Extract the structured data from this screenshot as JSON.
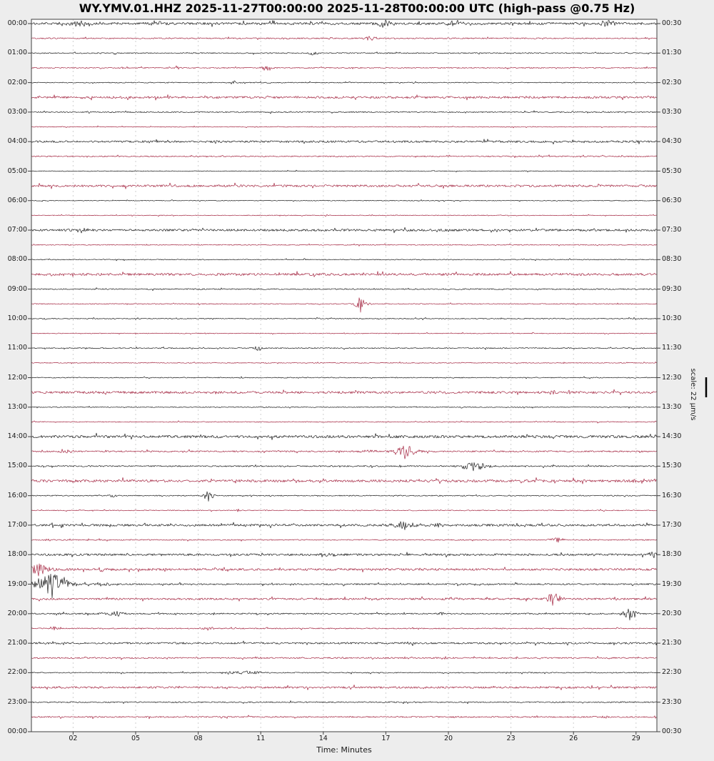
{
  "figure": {
    "title": "WY.YMV.01.HHZ 2025-11-27T00:00:00 2025-11-28T00:00:00 UTC (high-pass @0.75 Hz)",
    "xlabel": "Time: Minutes",
    "scale_label": "scale: 22 μm/s",
    "bg_color": "#ededed",
    "plot_bg": "#ffffff",
    "grid_color": "#cfcfcf",
    "frame_color": "#404040",
    "trace_color_even": "#1f1f1f",
    "trace_color_odd": "#a52843"
  },
  "axes": {
    "xlabel": "Time: Minutes",
    "x_ticks": [
      "02",
      "05",
      "08",
      "11",
      "14",
      "17",
      "20",
      "23",
      "26",
      "29"
    ],
    "x_tick_minutes": [
      2,
      5,
      8,
      11,
      14,
      17,
      20,
      23,
      26,
      29
    ],
    "x_range_minutes": [
      0,
      30
    ],
    "left_labels": [
      "00:00",
      "01:00",
      "02:00",
      "03:00",
      "04:00",
      "05:00",
      "06:00",
      "07:00",
      "08:00",
      "09:00",
      "10:00",
      "11:00",
      "12:00",
      "13:00",
      "14:00",
      "15:00",
      "16:00",
      "17:00",
      "18:00",
      "19:00",
      "20:00",
      "21:00",
      "22:00",
      "23:00",
      "00:00"
    ],
    "right_labels": [
      "00:30",
      "01:30",
      "02:30",
      "03:30",
      "04:30",
      "05:30",
      "06:30",
      "07:30",
      "08:30",
      "09:30",
      "10:30",
      "11:30",
      "12:30",
      "13:30",
      "14:30",
      "15:30",
      "16:30",
      "17:30",
      "18:30",
      "19:30",
      "20:30",
      "21:30",
      "22:30",
      "23:30",
      "00:30"
    ]
  },
  "chart_data": {
    "type": "line",
    "kind": "helicorder-dayplot",
    "title": "WY.YMV.01.HHZ 2025-11-27T00:00:00 2025-11-28T00:00:00 UTC (high-pass @0.75 Hz)",
    "station": "WY.YMV.01.HHZ",
    "start_utc": "2025-11-27T00:00:00",
    "end_utc": "2025-11-28T00:00:00",
    "filter": "high-pass @0.75 Hz",
    "amplitude_scale": "22 μm/s",
    "minutes_per_line": 30,
    "line_colors_alternate": [
      "black",
      "crimson"
    ],
    "rows": [
      {
        "t": "00:00",
        "noise": 1.6,
        "events": [
          [
            2.4,
            4,
            0.4
          ],
          [
            6.0,
            3,
            0.3
          ],
          [
            13.8,
            3.5,
            0.12
          ],
          [
            16.9,
            4.5,
            0.3
          ],
          [
            20.3,
            4.5,
            0.25
          ],
          [
            21.2,
            3,
            0.2
          ],
          [
            23.0,
            3,
            0.15
          ],
          [
            27.6,
            4,
            0.4
          ]
        ]
      },
      {
        "t": "00:30",
        "noise": 0.8,
        "events": [
          [
            12.2,
            1.5,
            0.12
          ],
          [
            14.4,
            1.5,
            0.1
          ],
          [
            16.3,
            3,
            0.25
          ]
        ]
      },
      {
        "t": "01:00",
        "noise": 0.7,
        "events": [
          [
            13.5,
            3,
            0.12
          ]
        ]
      },
      {
        "t": "01:30",
        "noise": 0.7,
        "events": [
          [
            7.0,
            2.5,
            0.12
          ],
          [
            11.3,
            4,
            0.18
          ]
        ]
      },
      {
        "t": "02:00",
        "noise": 0.6,
        "events": [
          [
            9.7,
            2.5,
            0.15
          ],
          [
            11.4,
            1.2,
            0.1
          ]
        ]
      },
      {
        "t": "02:30",
        "noise": 1.5,
        "events": [
          [
            24.0,
            1.5,
            0.2
          ]
        ]
      },
      {
        "t": "03:00",
        "noise": 0.8,
        "events": [
          [
            2.8,
            1.2,
            0.15
          ]
        ]
      },
      {
        "t": "03:30",
        "noise": 0.5,
        "events": []
      },
      {
        "t": "04:00",
        "noise": 1.4,
        "events": []
      },
      {
        "t": "04:30",
        "noise": 0.8,
        "events": []
      },
      {
        "t": "05:00",
        "noise": 0.5,
        "events": []
      },
      {
        "t": "05:30",
        "noise": 1.5,
        "events": []
      },
      {
        "t": "06:00",
        "noise": 0.5,
        "events": []
      },
      {
        "t": "06:30",
        "noise": 0.5,
        "events": []
      },
      {
        "t": "07:00",
        "noise": 1.5,
        "events": []
      },
      {
        "t": "07:30",
        "noise": 0.6,
        "events": []
      },
      {
        "t": "08:00",
        "noise": 0.6,
        "events": []
      },
      {
        "t": "08:30",
        "noise": 1.6,
        "events": []
      },
      {
        "t": "09:00",
        "noise": 0.8,
        "events": []
      },
      {
        "t": "09:30",
        "noise": 0.6,
        "events": [
          [
            15.8,
            9,
            0.2
          ]
        ]
      },
      {
        "t": "10:00",
        "noise": 0.6,
        "events": []
      },
      {
        "t": "10:30",
        "noise": 0.5,
        "events": []
      },
      {
        "t": "11:00",
        "noise": 0.7,
        "events": [
          [
            10.9,
            4,
            0.15
          ]
        ]
      },
      {
        "t": "11:30",
        "noise": 0.5,
        "events": []
      },
      {
        "t": "12:00",
        "noise": 0.6,
        "events": []
      },
      {
        "t": "12:30",
        "noise": 1.6,
        "events": [
          [
            19.8,
            1.5,
            0.3
          ],
          [
            25.0,
            2,
            0.2
          ]
        ]
      },
      {
        "t": "13:00",
        "noise": 0.6,
        "events": []
      },
      {
        "t": "13:30",
        "noise": 0.6,
        "events": []
      },
      {
        "t": "14:00",
        "noise": 1.8,
        "events": []
      },
      {
        "t": "14:30",
        "noise": 1.0,
        "events": [
          [
            1.6,
            3,
            0.25
          ],
          [
            16.2,
            2,
            0.3
          ],
          [
            17.9,
            8,
            0.4
          ]
        ]
      },
      {
        "t": "15:00",
        "noise": 0.9,
        "events": [
          [
            21.2,
            5,
            0.5
          ]
        ]
      },
      {
        "t": "15:30",
        "noise": 1.7,
        "events": [
          [
            29.2,
            3,
            0.25
          ]
        ]
      },
      {
        "t": "16:00",
        "noise": 0.7,
        "events": [
          [
            3.9,
            2.5,
            0.15
          ],
          [
            8.5,
            6,
            0.2
          ]
        ]
      },
      {
        "t": "16:30",
        "noise": 0.6,
        "events": [
          [
            9.9,
            2.5,
            0.08
          ]
        ]
      },
      {
        "t": "17:00",
        "noise": 1.5,
        "events": [
          [
            17.9,
            5,
            0.45
          ],
          [
            19.6,
            2,
            0.3
          ]
        ]
      },
      {
        "t": "17:30",
        "noise": 0.7,
        "events": [
          [
            0.8,
            1.5,
            0.15
          ],
          [
            25.2,
            4,
            0.25
          ]
        ]
      },
      {
        "t": "18:00",
        "noise": 1.4,
        "events": [
          [
            14.1,
            4,
            0.35
          ],
          [
            17.6,
            2.5,
            0.15
          ],
          [
            29.9,
            4,
            0.2
          ]
        ]
      },
      {
        "t": "18:30",
        "noise": 1.5,
        "events": [
          [
            0.35,
            7,
            0.5
          ],
          [
            2.3,
            2,
            0.12
          ],
          [
            3.3,
            2.5,
            0.15
          ],
          [
            9.1,
            2,
            0.25
          ]
        ]
      },
      {
        "t": "19:00",
        "noise": 1.0,
        "events": [
          [
            1.0,
            15,
            0.6
          ],
          [
            3.4,
            3,
            0.25
          ],
          [
            12.4,
            1.5,
            0.15
          ]
        ]
      },
      {
        "t": "19:30",
        "noise": 1.3,
        "events": [
          [
            20.2,
            2,
            0.35
          ],
          [
            25.0,
            7,
            0.3
          ]
        ]
      },
      {
        "t": "20:00",
        "noise": 0.9,
        "events": [
          [
            4.0,
            4,
            0.35
          ],
          [
            19.6,
            2,
            0.15
          ],
          [
            28.7,
            7,
            0.25
          ]
        ]
      },
      {
        "t": "20:30",
        "noise": 0.7,
        "events": [
          [
            1.1,
            2.5,
            0.15
          ],
          [
            8.4,
            2.5,
            0.25
          ]
        ]
      },
      {
        "t": "21:00",
        "noise": 1.2,
        "events": [
          [
            18.0,
            2,
            0.25
          ]
        ]
      },
      {
        "t": "21:30",
        "noise": 0.9,
        "events": [
          [
            10.8,
            1.5,
            0.15
          ],
          [
            18.0,
            1.5,
            0.15
          ],
          [
            19.8,
            2,
            0.15
          ],
          [
            23.2,
            1.5,
            0.15
          ]
        ]
      },
      {
        "t": "22:00",
        "noise": 0.7,
        "events": [
          [
            9.6,
            2,
            0.25
          ],
          [
            10.5,
            2.5,
            0.45
          ]
        ]
      },
      {
        "t": "22:30",
        "noise": 1.3,
        "events": []
      },
      {
        "t": "23:00",
        "noise": 0.8,
        "events": []
      },
      {
        "t": "23:30",
        "noise": 0.9,
        "events": [
          [
            27.5,
            1.5,
            0.15
          ]
        ]
      }
    ]
  }
}
